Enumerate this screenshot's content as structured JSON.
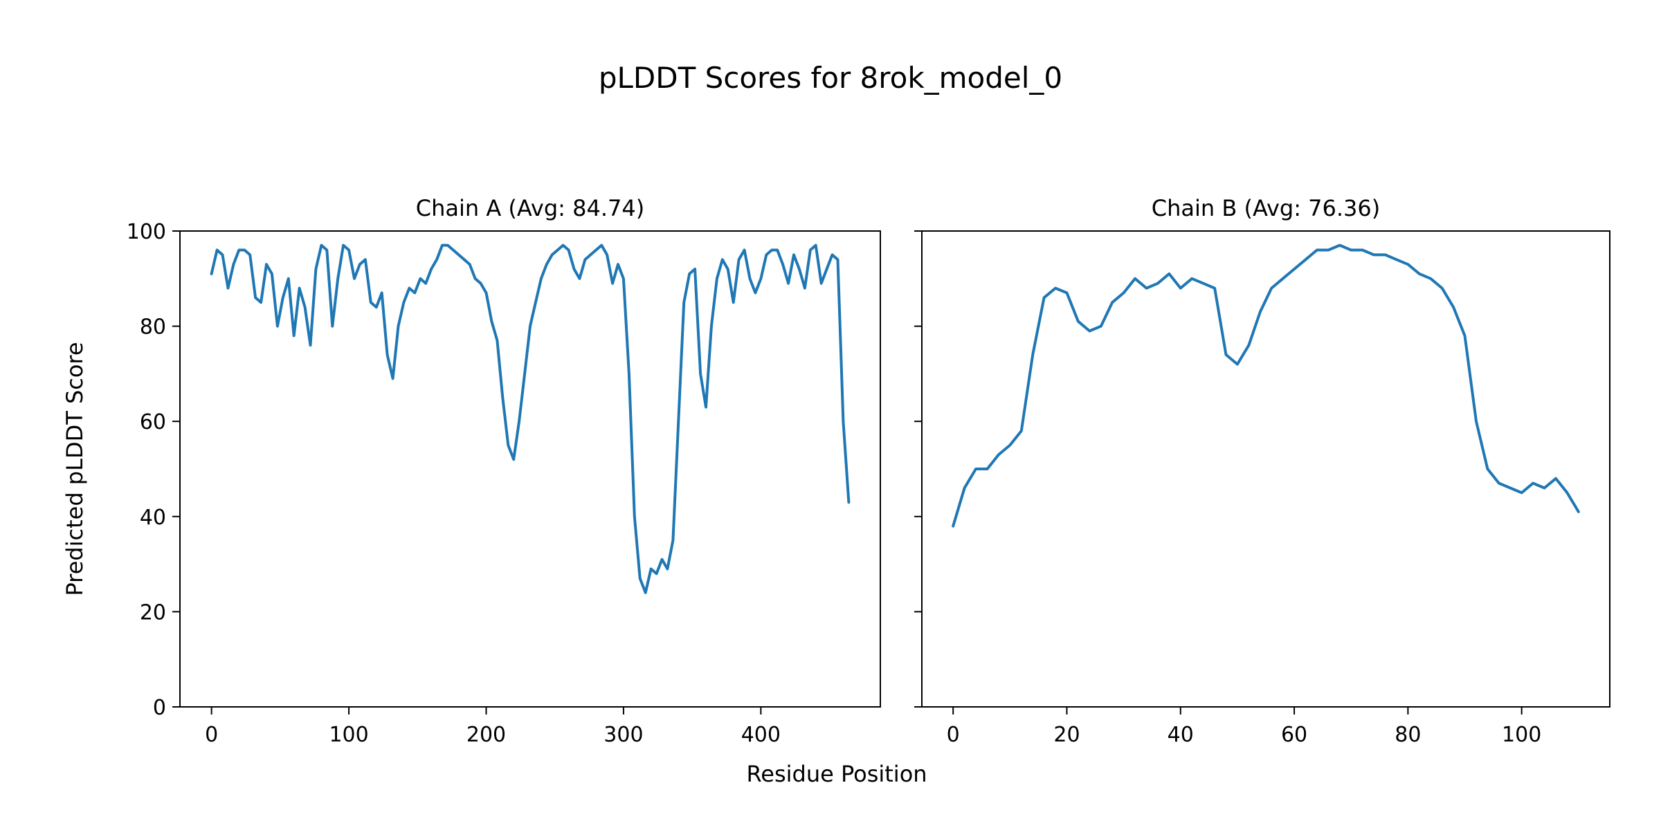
{
  "figure": {
    "title": "pLDDT Scores for 8rok_model_0",
    "xlabel": "Residue Position",
    "ylabel": "Predicted pLDDT Score",
    "line_color": "#1f77b4",
    "axis_color": "#000000",
    "background": "#ffffff"
  },
  "chart_data": [
    {
      "type": "line",
      "title": "Chain A (Avg: 84.74)",
      "avg": 84.74,
      "xlim": [
        -23,
        487
      ],
      "ylim": [
        0,
        100
      ],
      "xticks": [
        0,
        100,
        200,
        300,
        400
      ],
      "yticks": [
        0,
        20,
        40,
        60,
        80,
        100
      ],
      "show_ytick_labels": true,
      "x": [
        0,
        4,
        8,
        12,
        16,
        20,
        24,
        28,
        32,
        36,
        40,
        44,
        48,
        52,
        56,
        60,
        64,
        68,
        72,
        76,
        80,
        84,
        88,
        92,
        96,
        100,
        104,
        108,
        112,
        116,
        120,
        124,
        128,
        132,
        136,
        140,
        144,
        148,
        152,
        156,
        160,
        164,
        168,
        172,
        176,
        180,
        184,
        188,
        192,
        196,
        200,
        204,
        208,
        212,
        216,
        220,
        224,
        228,
        232,
        236,
        240,
        244,
        248,
        252,
        256,
        260,
        264,
        268,
        272,
        276,
        280,
        284,
        288,
        292,
        296,
        300,
        304,
        308,
        312,
        316,
        320,
        324,
        328,
        332,
        336,
        340,
        344,
        348,
        352,
        356,
        360,
        364,
        368,
        372,
        376,
        380,
        384,
        388,
        392,
        396,
        400,
        404,
        408,
        412,
        416,
        420,
        424,
        428,
        432,
        436,
        440,
        444,
        448,
        452,
        456,
        460,
        464
      ],
      "y": [
        91,
        96,
        95,
        88,
        93,
        96,
        96,
        95,
        86,
        85,
        93,
        91,
        80,
        86,
        90,
        78,
        88,
        84,
        76,
        92,
        97,
        96,
        80,
        90,
        97,
        96,
        90,
        93,
        94,
        85,
        84,
        87,
        74,
        69,
        80,
        85,
        88,
        87,
        90,
        89,
        92,
        94,
        97,
        97,
        96,
        95,
        94,
        93,
        90,
        89,
        87,
        81,
        77,
        65,
        55,
        52,
        60,
        70,
        80,
        85,
        90,
        93,
        95,
        96,
        97,
        96,
        92,
        90,
        94,
        95,
        96,
        97,
        95,
        89,
        93,
        90,
        70,
        40,
        27,
        24,
        29,
        28,
        31,
        29,
        35,
        60,
        85,
        91,
        92,
        70,
        63,
        80,
        90,
        94,
        92,
        85,
        94,
        96,
        90,
        87,
        90,
        95,
        96,
        96,
        93,
        89,
        95,
        92,
        88,
        96,
        97,
        89,
        92,
        95,
        94,
        60,
        43
      ]
    },
    {
      "type": "line",
      "title": "Chain B (Avg: 76.36)",
      "avg": 76.36,
      "xlim": [
        -5.5,
        115.5
      ],
      "ylim": [
        0,
        100
      ],
      "xticks": [
        0,
        20,
        40,
        60,
        80,
        100
      ],
      "yticks": [
        0,
        20,
        40,
        60,
        80,
        100
      ],
      "show_ytick_labels": false,
      "x": [
        0,
        2,
        4,
        6,
        8,
        10,
        12,
        14,
        16,
        18,
        20,
        22,
        24,
        26,
        28,
        30,
        32,
        34,
        36,
        38,
        40,
        42,
        44,
        46,
        48,
        50,
        52,
        54,
        56,
        58,
        60,
        62,
        64,
        66,
        68,
        70,
        72,
        74,
        76,
        78,
        80,
        82,
        84,
        86,
        88,
        90,
        92,
        94,
        96,
        98,
        100,
        102,
        104,
        106,
        108,
        110
      ],
      "y": [
        38,
        46,
        50,
        50,
        53,
        55,
        58,
        74,
        86,
        88,
        87,
        81,
        79,
        80,
        85,
        87,
        90,
        88,
        89,
        91,
        88,
        90,
        89,
        88,
        74,
        72,
        76,
        83,
        88,
        90,
        92,
        94,
        96,
        96,
        97,
        96,
        96,
        95,
        95,
        94,
        93,
        91,
        90,
        88,
        84,
        78,
        60,
        50,
        47,
        46,
        45,
        47,
        46,
        48,
        45,
        41
      ]
    }
  ]
}
